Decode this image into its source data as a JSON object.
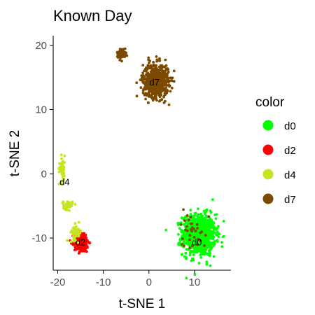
{
  "chart_data": {
    "type": "scatter",
    "title": "Known Day",
    "xlabel": "t-SNE 1",
    "ylabel": "t-SNE 2",
    "xlim": [
      -21,
      18
    ],
    "ylim": [
      -15,
      21.5
    ],
    "xticks": [
      -20,
      -10,
      0,
      10
    ],
    "yticks": [
      -10,
      0,
      10,
      20
    ],
    "grid": false,
    "legend": {
      "title": "color",
      "placement": "right"
    },
    "series": [
      {
        "name": "d0",
        "color": "#00FF00",
        "clusters": [
          {
            "cx": 11,
            "cy": -9.5,
            "sx": 1.8,
            "sy": 1.6,
            "n": 900
          }
        ]
      },
      {
        "name": "d2",
        "color": "#FF0000",
        "clusters": [
          {
            "cx": -14.8,
            "cy": -10.6,
            "sx": 0.8,
            "sy": 0.8,
            "n": 260
          }
        ]
      },
      {
        "name": "d4",
        "color": "#C5E61F",
        "clusters": [
          {
            "cx": -19,
            "cy": 0.8,
            "sx": 0.35,
            "sy": 1.0,
            "n": 60
          },
          {
            "cx": -17.8,
            "cy": -4.9,
            "sx": 0.5,
            "sy": 0.35,
            "n": 45
          },
          {
            "cx": -16,
            "cy": -9.1,
            "sx": 0.6,
            "sy": 0.6,
            "n": 50
          }
        ]
      },
      {
        "name": "d7",
        "color": "#7B4A00",
        "clusters": [
          {
            "cx": 1.5,
            "cy": 14.5,
            "sx": 1.4,
            "sy": 1.3,
            "n": 650
          },
          {
            "cx": -6,
            "cy": 18.7,
            "sx": 0.5,
            "sy": 0.4,
            "n": 60
          },
          {
            "cx": 9.5,
            "cy": -8.5,
            "sx": 1.5,
            "sy": 1.6,
            "n": 35
          }
        ]
      }
    ],
    "annotations": [
      {
        "text": "d7",
        "x": 1.2,
        "y": 14.3
      },
      {
        "text": "d4",
        "x": -18.5,
        "y": -1.2
      },
      {
        "text": "d2",
        "x": -15.0,
        "y": -10.6
      },
      {
        "text": "d0",
        "x": 10.5,
        "y": -10.6
      }
    ]
  }
}
